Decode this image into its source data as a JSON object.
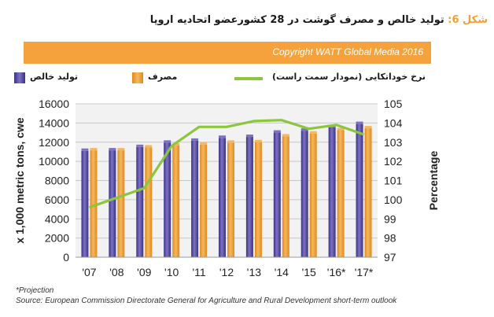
{
  "title": {
    "label": "شکل",
    "number": "6",
    "colon": ":",
    "text": "تولید خالص و مصرف گوشت در 28 کشورعضو اتحادیه اروپا"
  },
  "banner": {
    "text": "Copyright WATT Global Media 2016"
  },
  "legend": {
    "production": "تولید خالص",
    "consumption": "مصرف",
    "self_sufficiency": "نرخ خوداتکایی (نمودار سمت راست)"
  },
  "colors": {
    "production_bar": "#3b3287",
    "production_bar_light": "#7d72c2",
    "consumption_bar": "#e08a1c",
    "consumption_bar_light": "#f5b760",
    "line": "#8cc63e",
    "grid": "#c8c8c8",
    "banner": "#f5a23c",
    "plot_bg": "#f2f2f2"
  },
  "chart_data": {
    "type": "bar",
    "categories": [
      "'07",
      "'08",
      "'09",
      "'10",
      "'11",
      "'12",
      "'13",
      "'14",
      "'15",
      "'16*",
      "'17*"
    ],
    "series": [
      {
        "name": "تولید خالص",
        "axis": "left",
        "values": [
          11100,
          11150,
          11500,
          11950,
          12150,
          12450,
          12550,
          13000,
          13200,
          13550,
          13900
        ]
      },
      {
        "name": "مصرف",
        "axis": "left",
        "values": [
          11150,
          11150,
          11450,
          11650,
          11750,
          11950,
          12000,
          12600,
          12900,
          13250,
          13450
        ]
      },
      {
        "name": "نرخ خوداتکایی (نمودار سمت راست)",
        "axis": "right",
        "type": "line",
        "values": [
          99.6,
          100.1,
          100.6,
          102.8,
          103.8,
          103.8,
          104.1,
          104.15,
          103.7,
          103.9,
          103.4
        ]
      }
    ],
    "ylabel": "x 1,000 metric tons, cwe",
    "ylim": [
      0,
      16000
    ],
    "yticks": [
      "0",
      "2000",
      "4000",
      "6000",
      "8000",
      "10000",
      "12000",
      "14000",
      "16000"
    ],
    "y2label": "Percentage",
    "y2lim": [
      97,
      105
    ],
    "y2ticks": [
      "97",
      "98",
      "99",
      "100",
      "101",
      "102",
      "103",
      "104",
      "105"
    ],
    "grid": true
  },
  "footnotes": {
    "projection": "*Projection",
    "source": "Source: European Commission Directorate General for Agriculture and Rural Development short-term outlook"
  }
}
